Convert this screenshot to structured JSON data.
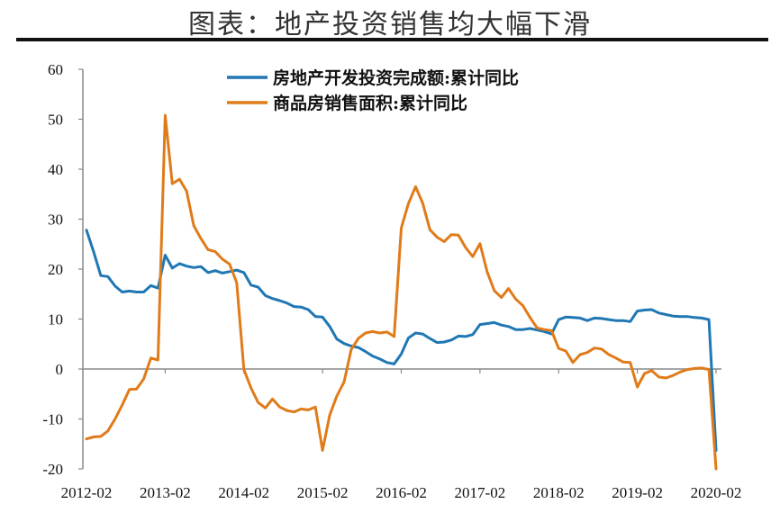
{
  "title": "图表：地产投资销售均大幅下滑",
  "chart_data": {
    "type": "line",
    "title": "图表：地产投资销售均大幅下滑",
    "xlabel": "",
    "ylabel": "",
    "ylim": [
      -20,
      60
    ],
    "yticks": [
      "60",
      "50",
      "40",
      "30",
      "20",
      "10",
      "0",
      "-10",
      "-20"
    ],
    "xticks": [
      "2012-02",
      "2013-02",
      "2014-02",
      "2015-02",
      "2016-02",
      "2017-02",
      "2018-02",
      "2019-02",
      "2020-02"
    ],
    "grid": false,
    "legend_position": "top-center",
    "x": [
      "2012-02",
      "2012-03",
      "2012-04",
      "2012-05",
      "2012-06",
      "2012-07",
      "2012-08",
      "2012-09",
      "2012-10",
      "2012-11",
      "2012-12",
      "2013-02",
      "2013-03",
      "2013-04",
      "2013-05",
      "2013-06",
      "2013-07",
      "2013-08",
      "2013-09",
      "2013-10",
      "2013-11",
      "2013-12",
      "2014-02",
      "2014-03",
      "2014-04",
      "2014-05",
      "2014-06",
      "2014-07",
      "2014-08",
      "2014-09",
      "2014-10",
      "2014-11",
      "2014-12",
      "2015-02",
      "2015-03",
      "2015-04",
      "2015-05",
      "2015-06",
      "2015-07",
      "2015-08",
      "2015-09",
      "2015-10",
      "2015-11",
      "2015-12",
      "2016-02",
      "2016-03",
      "2016-04",
      "2016-05",
      "2016-06",
      "2016-07",
      "2016-08",
      "2016-09",
      "2016-10",
      "2016-11",
      "2016-12",
      "2017-02",
      "2017-03",
      "2017-04",
      "2017-05",
      "2017-06",
      "2017-07",
      "2017-08",
      "2017-09",
      "2017-10",
      "2017-11",
      "2017-12",
      "2018-02",
      "2018-03",
      "2018-04",
      "2018-05",
      "2018-06",
      "2018-07",
      "2018-08",
      "2018-09",
      "2018-10",
      "2018-11",
      "2018-12",
      "2019-02",
      "2019-03",
      "2019-04",
      "2019-05",
      "2019-06",
      "2019-07",
      "2019-08",
      "2019-09",
      "2019-10",
      "2019-11",
      "2019-12",
      "2020-02"
    ],
    "series": [
      {
        "name": "房地产开发投资完成额:累计同比",
        "color": "#1f77b4",
        "values": [
          27.8,
          23.5,
          18.7,
          18.5,
          16.6,
          15.4,
          15.6,
          15.4,
          15.4,
          16.7,
          16.2,
          22.8,
          20.2,
          21.1,
          20.6,
          20.3,
          20.5,
          19.3,
          19.7,
          19.2,
          19.5,
          19.8,
          19.3,
          16.8,
          16.4,
          14.7,
          14.1,
          13.7,
          13.2,
          12.5,
          12.4,
          11.9,
          10.5,
          10.4,
          8.5,
          6.0,
          5.1,
          4.6,
          4.3,
          3.5,
          2.6,
          2.0,
          1.3,
          1.0,
          3.0,
          6.2,
          7.2,
          7.0,
          6.1,
          5.3,
          5.4,
          5.8,
          6.6,
          6.5,
          6.9,
          8.9,
          9.1,
          9.3,
          8.8,
          8.5,
          7.9,
          7.9,
          8.1,
          7.8,
          7.5,
          7.0,
          9.9,
          10.4,
          10.3,
          10.2,
          9.7,
          10.2,
          10.1,
          9.9,
          9.7,
          9.7,
          9.5,
          11.6,
          11.8,
          11.9,
          11.2,
          10.9,
          10.6,
          10.5,
          10.5,
          10.3,
          10.2,
          9.9,
          -16.3
        ]
      },
      {
        "name": "商品房销售面积:累计同比",
        "color": "#e07b1a",
        "values": [
          -14.0,
          -13.6,
          -13.5,
          -12.4,
          -10.0,
          -7.2,
          -4.1,
          -4.0,
          -2.0,
          2.2,
          1.8,
          50.8,
          37.1,
          38.0,
          35.6,
          28.7,
          26.1,
          23.9,
          23.5,
          22.0,
          21.0,
          17.3,
          -0.1,
          -3.8,
          -6.7,
          -7.8,
          -6.0,
          -7.6,
          -8.3,
          -8.6,
          -8.0,
          -8.2,
          -7.6,
          -16.3,
          -9.2,
          -5.4,
          -2.6,
          3.9,
          6.1,
          7.2,
          7.5,
          7.2,
          7.4,
          6.5,
          28.2,
          33.1,
          36.5,
          33.2,
          27.9,
          26.4,
          25.5,
          26.9,
          26.8,
          24.3,
          22.5,
          25.1,
          19.5,
          15.7,
          14.3,
          16.1,
          14.0,
          12.7,
          10.3,
          8.2,
          7.9,
          7.7,
          4.1,
          3.6,
          1.3,
          2.9,
          3.3,
          4.2,
          4.0,
          2.9,
          2.2,
          1.4,
          1.3,
          -3.6,
          -0.9,
          -0.3,
          -1.6,
          -1.8,
          -1.3,
          -0.6,
          -0.1,
          0.1,
          0.2,
          -0.1,
          -20.0
        ]
      }
    ]
  }
}
